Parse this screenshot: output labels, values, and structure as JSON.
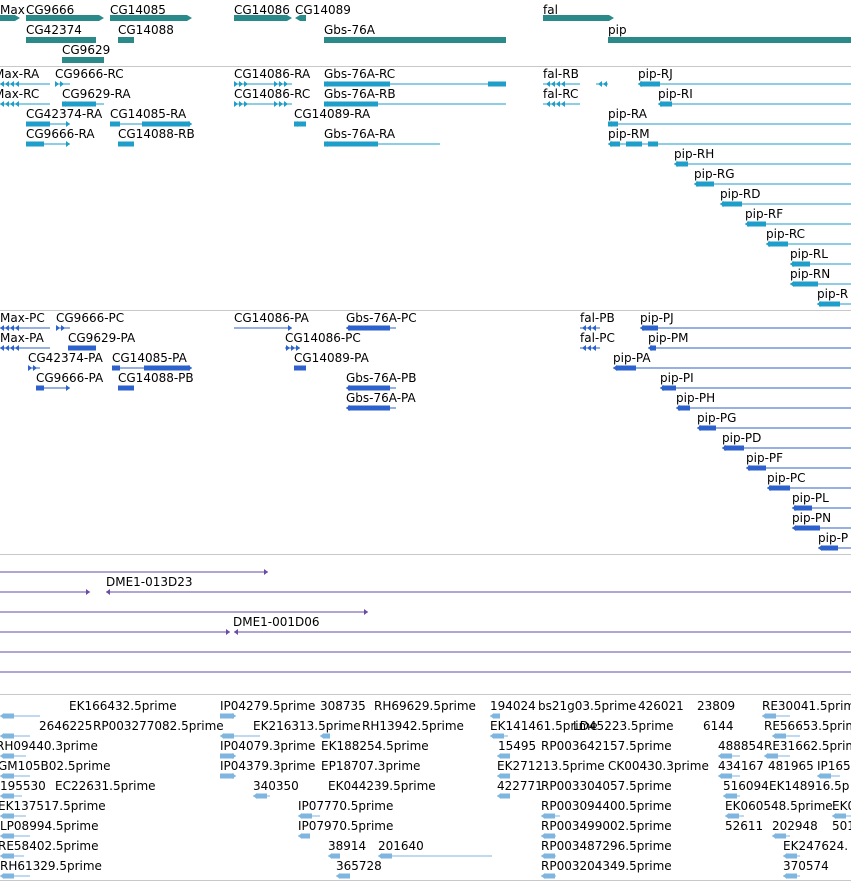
{
  "colors": {
    "gene": "#2a8a8a",
    "transcript_a": "#1e9ec8",
    "transcript_b": "#2d62cc",
    "clone": "#6a4aa6",
    "est": "#7fb6e0"
  },
  "tracks": {
    "genes": {
      "labels": [
        "Max",
        "CG9666",
        "CG14085",
        "CG14086",
        "CG14089",
        "fal",
        "CG42374",
        "CG14088",
        "Gbs-76A",
        "pip",
        "CG9629"
      ]
    },
    "transcripts_a": {
      "labels": [
        "Max-RA",
        "CG9666-RC",
        "CG14086-RA",
        "Gbs-76A-RC",
        "fal-RB",
        "pip-RJ",
        "Max-RC",
        "CG9629-RA",
        "CG14086-RC",
        "Gbs-76A-RB",
        "fal-RC",
        "pip-RI",
        "CG42374-RA",
        "CG14085-RA",
        "CG14089-RA",
        "pip-RA",
        "CG9666-RA",
        "CG14088-RB",
        "Gbs-76A-RA",
        "pip-RM",
        "pip-RH",
        "pip-RG",
        "pip-RD",
        "pip-RF",
        "pip-RC",
        "pip-RL",
        "pip-RN",
        "pip-R"
      ]
    },
    "transcripts_b": {
      "labels": [
        "Max-PC",
        "CG9666-PC",
        "CG14086-PA",
        "Gbs-76A-PC",
        "fal-PB",
        "pip-PJ",
        "Max-PA",
        "CG9629-PA",
        "CG14086-PC",
        "fal-PC",
        "pip-PM",
        "CG42374-PA",
        "CG14085-PA",
        "CG14089-PA",
        "pip-PA",
        "CG9666-PA",
        "CG14088-PB",
        "Gbs-76A-PB",
        "pip-PI",
        "Gbs-76A-PA",
        "pip-PH",
        "pip-PG",
        "pip-PD",
        "pip-PF",
        "pip-PC",
        "pip-PL",
        "pip-PN",
        "pip-P"
      ]
    },
    "clones": {
      "labels": [
        "DME1-013D23",
        "DME1-001D06"
      ]
    },
    "ests": {
      "labels": [
        "EK166432.5prime",
        "IP04279.5prime",
        "308735",
        "RH69629.5prime",
        "194024",
        "bs21g03.5prime",
        "426021",
        "23809",
        "RE30041.5prime",
        "2646225",
        "RP003277082.5prime",
        "EK216313.5prime",
        "RH13942.5prime",
        "EK141461.5prime",
        "LD45223.5prime",
        "6144",
        "RE56653.5prime",
        "RH09440.3prime",
        "IP04079.3prime",
        "EK188254.5prime",
        "15495",
        "RP003642157.5prime",
        "488854",
        "RE31662.5prime",
        "GM105B02.5prime",
        "IP04379.3prime",
        "EP18707.3prime",
        "EK271213.5prime",
        "CK00430.3prime",
        "434167",
        "481965",
        "IP165",
        "195530",
        "EC22631.5prime",
        "340350",
        "EK044239.5prime",
        "422771",
        "RP003304057.5prime",
        "516094",
        "EK148916.5p",
        "EK137517.5prime",
        "IP07770.5prime",
        "RP003094400.5prime",
        "EK060548.5prime",
        "EK0",
        "LP08994.5prime",
        "IP07970.5prime",
        "RP003499002.5prime",
        "52611",
        "202948",
        "501",
        "RE58402.5prime",
        "38914",
        "201640",
        "RP003487296.5prime",
        "EK247624.",
        "RH61329.5prime",
        "365728",
        "RP003204349.5prime",
        "370574"
      ]
    }
  }
}
